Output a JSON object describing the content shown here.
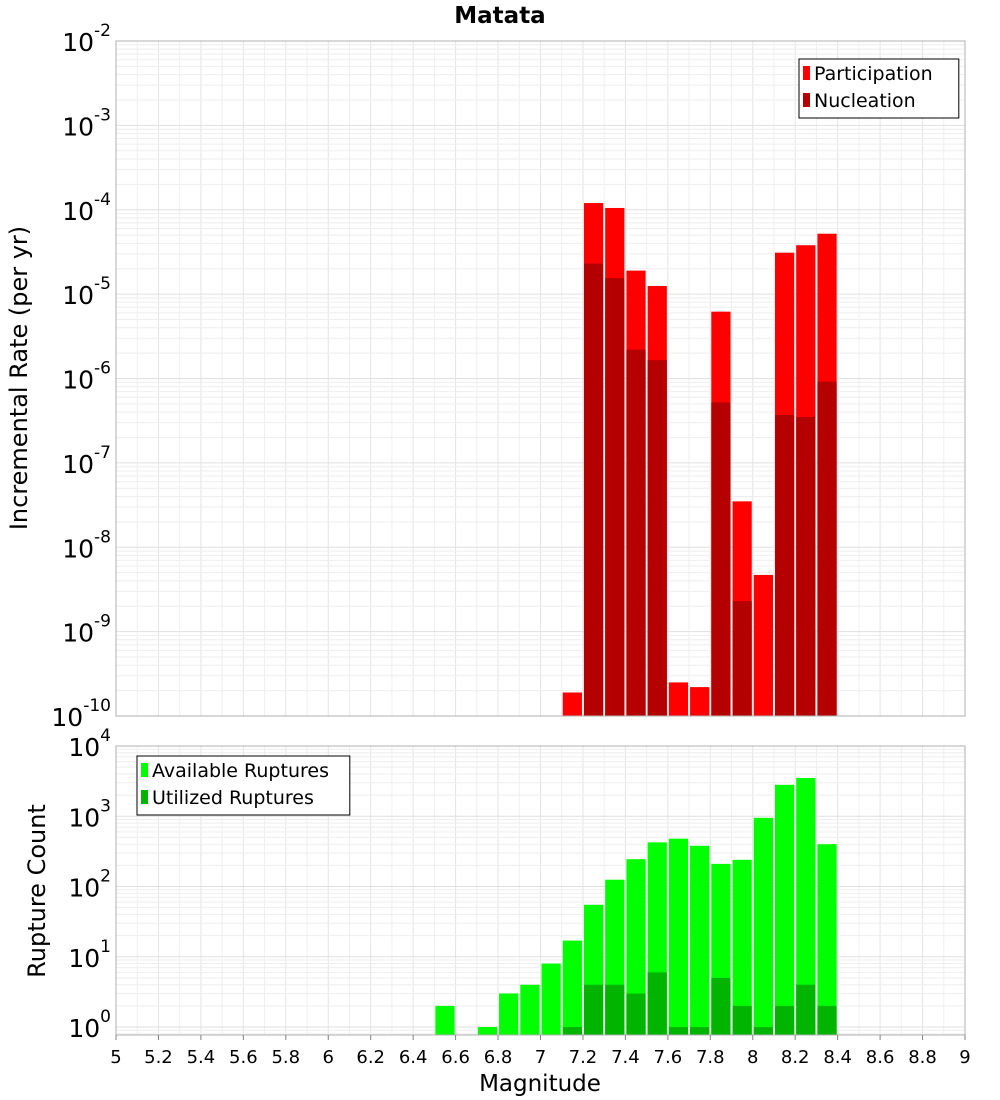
{
  "chart_data": [
    {
      "type": "bar",
      "title": "Matata",
      "xlabel": "",
      "ylabel": "Incremental Rate (per yr)",
      "yscale": "log",
      "ylim": [
        1e-10,
        0.01
      ],
      "xlim": [
        5,
        9
      ],
      "grid": true,
      "legend_position": "top-right",
      "y_tick_labels": [
        {
          "base": "10",
          "exp": "-2"
        },
        {
          "base": "10",
          "exp": "-3"
        },
        {
          "base": "10",
          "exp": "-4"
        },
        {
          "base": "10",
          "exp": "-5"
        },
        {
          "base": "10",
          "exp": "-6"
        },
        {
          "base": "10",
          "exp": "-7"
        },
        {
          "base": "10",
          "exp": "-8"
        },
        {
          "base": "10",
          "exp": "-9"
        },
        {
          "base": "10",
          "exp": "-10"
        }
      ],
      "x": [
        7.15,
        7.25,
        7.35,
        7.45,
        7.55,
        7.65,
        7.75,
        7.85,
        7.95,
        8.05,
        8.15,
        8.25,
        8.35
      ],
      "series": [
        {
          "name": "Participation",
          "color": "#ff0000",
          "values": [
            1.9e-10,
            0.00012,
            0.000105,
            1.9e-05,
            1.25e-05,
            2.5e-10,
            2.2e-10,
            6.2e-06,
            3.5e-08,
            4.7e-09,
            3.1e-05,
            3.8e-05,
            5.2e-05
          ]
        },
        {
          "name": "Nucleation",
          "color": "#b40000",
          "values": [
            null,
            2.3e-05,
            1.55e-05,
            2.2e-06,
            1.65e-06,
            null,
            null,
            5.2e-07,
            2.3e-09,
            null,
            3.7e-07,
            3.5e-07,
            9.2e-07
          ]
        }
      ]
    },
    {
      "type": "bar",
      "title": "",
      "xlabel": "Magnitude",
      "ylabel": "Rupture Count",
      "yscale": "log",
      "ylim": [
        0.77,
        10000
      ],
      "xlim": [
        5,
        9
      ],
      "grid": true,
      "legend_position": "top-left",
      "y_tick_labels": [
        {
          "base": "10",
          "exp": "4"
        },
        {
          "base": "10",
          "exp": "3"
        },
        {
          "base": "10",
          "exp": "2"
        },
        {
          "base": "10",
          "exp": "1"
        },
        {
          "base": "10",
          "exp": "0"
        }
      ],
      "x_tick_labels": [
        "5",
        "5.2",
        "5.4",
        "5.6",
        "5.8",
        "6",
        "6.2",
        "6.4",
        "6.6",
        "6.8",
        "7",
        "7.2",
        "7.4",
        "7.6",
        "7.8",
        "8",
        "8.2",
        "8.4",
        "8.6",
        "8.8",
        "9"
      ],
      "x": [
        6.55,
        6.75,
        6.85,
        6.95,
        7.05,
        7.15,
        7.25,
        7.35,
        7.45,
        7.55,
        7.65,
        7.75,
        7.85,
        7.95,
        8.05,
        8.15,
        8.25,
        8.35
      ],
      "series": [
        {
          "name": "Available Ruptures",
          "color": "#00ff00",
          "values": [
            2,
            1,
            3,
            4,
            8,
            17,
            55,
            125,
            245,
            425,
            480,
            380,
            210,
            240,
            950,
            2800,
            3500,
            400
          ]
        },
        {
          "name": "Utilized Ruptures",
          "color": "#00b400",
          "values": [
            null,
            null,
            null,
            null,
            null,
            1,
            4,
            4,
            3,
            6,
            1,
            1,
            5,
            2,
            1,
            2,
            4,
            2
          ]
        }
      ]
    }
  ]
}
